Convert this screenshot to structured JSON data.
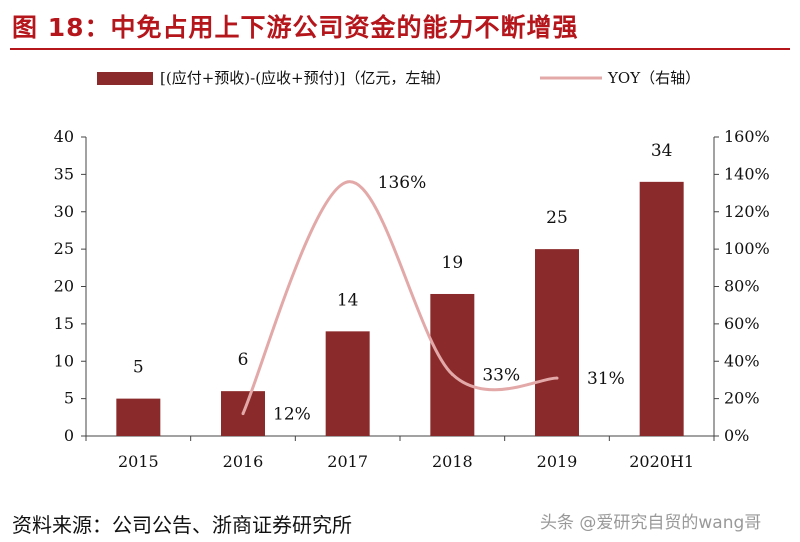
{
  "header": {
    "title": "图 18：中免占用上下游公司资金的能力不断增强"
  },
  "footer": {
    "source": "资料来源：公司公告、浙商证券研究所",
    "watermark": "头条 @爱研究自贸的wang哥"
  },
  "colors": {
    "bar": "#8b2a2b",
    "line": "#e3a9a9",
    "title": "#b5161c"
  },
  "chart_data": {
    "type": "bar",
    "title": "中免占用上下游公司资金的能力不断增强",
    "categories": [
      "2015",
      "2016",
      "2017",
      "2018",
      "2019",
      "2020H1"
    ],
    "series": [
      {
        "name": "[(应付+预收)-(应收+预付)]（亿元，左轴）",
        "type": "bar",
        "axis": "left",
        "values": [
          5,
          6,
          14,
          19,
          25,
          34
        ],
        "value_labels": [
          "5",
          "6",
          "14",
          "19",
          "25",
          "34"
        ]
      },
      {
        "name": "YOY（右轴）",
        "type": "line",
        "axis": "right",
        "x": [
          "2016",
          "2017",
          "2018",
          "2019"
        ],
        "values": [
          12,
          136,
          33,
          31
        ],
        "value_labels": [
          "12%",
          "136%",
          "33%",
          "31%"
        ]
      }
    ],
    "y_left": {
      "range": [
        0,
        40
      ],
      "ticks": [
        "0",
        "5",
        "10",
        "15",
        "20",
        "25",
        "30",
        "35",
        "40"
      ]
    },
    "y_right": {
      "range": [
        0,
        160
      ],
      "ticks": [
        "0%",
        "20%",
        "40%",
        "60%",
        "80%",
        "100%",
        "120%",
        "140%",
        "160%"
      ]
    },
    "legend": {
      "position": "top",
      "bar_label": "[(应付+预收)-(应收+预付)]（亿元，左轴）",
      "line_label": "YOY（右轴）"
    },
    "grid": false
  }
}
